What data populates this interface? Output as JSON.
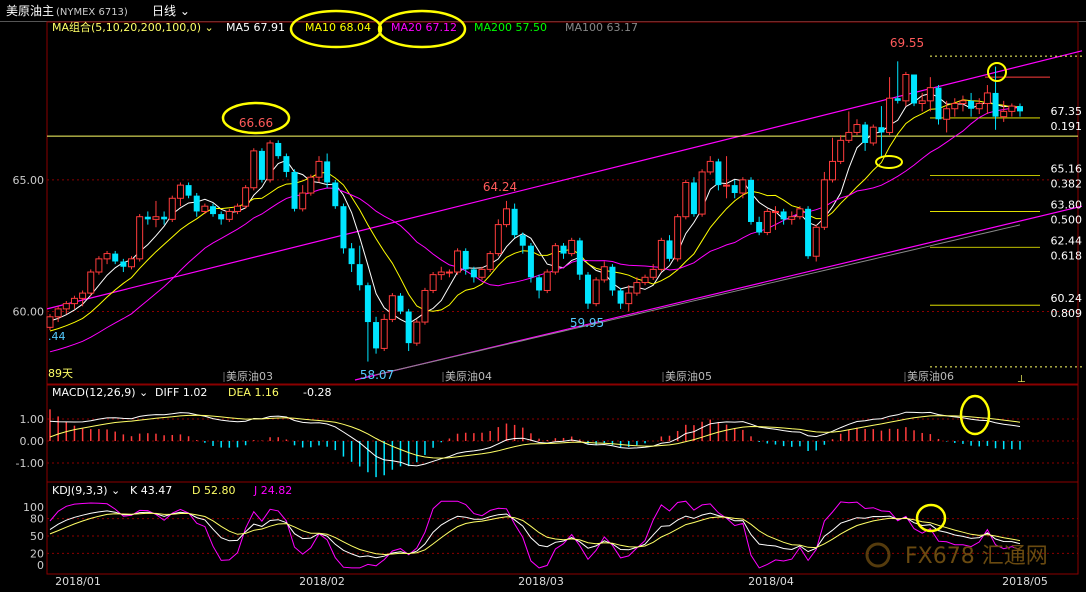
{
  "header": {
    "symbol": "美原油主",
    "code": "(NYMEX 6713)",
    "period": "日线"
  },
  "colors": {
    "background": "#000000",
    "up": "#ff3c3c",
    "down": "#00e5ff",
    "ma5": "#ffffff",
    "ma10": "#ffff00",
    "ma20": "#ff00ff",
    "ma200": "#00ff00",
    "ma100": "#888888",
    "channel": "#ff00ff",
    "fib": "#ffff00",
    "highlight": "#ffff00",
    "grid": "#8b0000"
  },
  "ma_panel": {
    "label": "MA组合(5,10,20,200,100,0)",
    "items": [
      {
        "label": "MA5",
        "value": "67.91"
      },
      {
        "label": "MA10",
        "value": "68.04"
      },
      {
        "label": "MA20",
        "value": "67.12"
      },
      {
        "label": "MA200",
        "value": "57.50"
      },
      {
        "label": "MA100",
        "value": "63.17"
      }
    ]
  },
  "macd_panel": {
    "label": "MACD(12,26,9)",
    "diff_label": "DIFF",
    "diff_value": "1.02",
    "dea_label": "DEA",
    "dea_value": "1.16",
    "macd_value": "-0.28",
    "ticks": [
      "1.00",
      "0.00",
      "-1.00"
    ]
  },
  "kdj_panel": {
    "label": "KDJ(9,3,3)",
    "k_label": "K",
    "k_value": "43.47",
    "d_label": "D",
    "d_value": "52.80",
    "j_label": "J",
    "j_value": "24.82",
    "ticks": [
      "100",
      "80",
      "50",
      "20",
      "0"
    ]
  },
  "annotations": {
    "high_1": "66.66",
    "low_1": "58.07",
    "peak_2": "64.24",
    "low_2": "59.95",
    "high_3": "69.55",
    "left_edge": ".44",
    "days_note": "89天"
  },
  "contracts": [
    "美原油03",
    "美原油04",
    "美原油05",
    "美原油06"
  ],
  "fib_levels": [
    {
      "price": "67.35",
      "ratio": "0.191"
    },
    {
      "price": "65.16",
      "ratio": "0.382"
    },
    {
      "price": "63.80",
      "ratio": "0.500"
    },
    {
      "price": "62.44",
      "ratio": "0.618"
    },
    {
      "price": "60.24",
      "ratio": "0.809"
    }
  ],
  "watermark": "FX678 汇通网",
  "chart_data": {
    "type": "candlestick",
    "x_axis_labels": [
      "2018/01",
      "2018/02",
      "2018/03",
      "2018/04",
      "2018/05"
    ],
    "y_ticks": [
      "65.00",
      "60.00"
    ],
    "ylim": [
      57.4,
      70.5
    ],
    "candles": [
      [
        59.4,
        59.8,
        59.3,
        59.9
      ],
      [
        59.8,
        60.1,
        59.6,
        60.2
      ],
      [
        60.1,
        60.3,
        59.9,
        60.4
      ],
      [
        60.3,
        60.5,
        60.1,
        60.6
      ],
      [
        60.5,
        60.7,
        60.2,
        60.8
      ],
      [
        60.7,
        61.5,
        60.6,
        61.6
      ],
      [
        61.5,
        62.0,
        61.4,
        62.1
      ],
      [
        62.0,
        62.2,
        61.8,
        62.3
      ],
      [
        62.2,
        61.9,
        61.8,
        62.3
      ],
      [
        61.9,
        61.7,
        61.5,
        62.0
      ],
      [
        61.7,
        62.0,
        61.6,
        62.1
      ],
      [
        62.0,
        63.6,
        61.9,
        63.7
      ],
      [
        63.6,
        63.5,
        63.3,
        63.8
      ],
      [
        63.5,
        63.6,
        63.2,
        64.2
      ],
      [
        63.6,
        63.5,
        63.3,
        63.8
      ],
      [
        63.5,
        64.3,
        63.4,
        64.4
      ],
      [
        64.3,
        64.8,
        64.0,
        64.9
      ],
      [
        64.8,
        64.4,
        64.3,
        64.9
      ],
      [
        64.4,
        63.8,
        63.6,
        64.5
      ],
      [
        63.8,
        64.0,
        63.7,
        64.1
      ],
      [
        64.0,
        63.7,
        63.6,
        64.1
      ],
      [
        63.7,
        63.5,
        63.3,
        63.8
      ],
      [
        63.5,
        63.8,
        63.4,
        63.9
      ],
      [
        63.8,
        64.0,
        63.7,
        64.1
      ],
      [
        64.0,
        64.7,
        63.9,
        64.8
      ],
      [
        64.7,
        66.1,
        64.6,
        66.2
      ],
      [
        66.1,
        65.0,
        64.9,
        66.2
      ],
      [
        65.0,
        66.4,
        64.9,
        66.5
      ],
      [
        66.4,
        65.9,
        65.8,
        66.5
      ],
      [
        65.9,
        65.3,
        65.1,
        66.0
      ],
      [
        65.3,
        63.9,
        63.8,
        65.4
      ],
      [
        63.9,
        64.5,
        63.8,
        64.8
      ],
      [
        64.5,
        65.1,
        64.4,
        65.2
      ],
      [
        65.1,
        65.7,
        64.9,
        65.9
      ],
      [
        65.7,
        64.9,
        64.7,
        66.0
      ],
      [
        64.9,
        64.0,
        63.9,
        65.0
      ],
      [
        64.0,
        62.4,
        62.2,
        64.1
      ],
      [
        62.4,
        61.8,
        61.5,
        62.6
      ],
      [
        61.8,
        61.0,
        60.8,
        62.5
      ],
      [
        61.0,
        59.6,
        58.1,
        61.1
      ],
      [
        59.6,
        58.6,
        58.4,
        59.8
      ],
      [
        58.6,
        59.7,
        58.5,
        59.9
      ],
      [
        59.7,
        60.6,
        59.6,
        60.7
      ],
      [
        60.6,
        60.0,
        59.9,
        60.7
      ],
      [
        60.0,
        58.8,
        58.5,
        60.1
      ],
      [
        58.8,
        59.6,
        58.7,
        59.7
      ],
      [
        59.6,
        60.8,
        59.5,
        60.9
      ],
      [
        60.8,
        61.4,
        60.7,
        61.5
      ],
      [
        61.4,
        61.5,
        61.2,
        61.7
      ],
      [
        61.5,
        61.5,
        61.3,
        61.6
      ],
      [
        61.5,
        62.3,
        61.4,
        62.4
      ],
      [
        62.3,
        61.6,
        61.4,
        62.4
      ],
      [
        61.6,
        61.3,
        61.1,
        61.7
      ],
      [
        61.3,
        61.6,
        61.2,
        61.7
      ],
      [
        61.6,
        62.2,
        61.5,
        62.3
      ],
      [
        62.2,
        63.3,
        62.1,
        63.5
      ],
      [
        63.3,
        63.9,
        63.2,
        64.2
      ],
      [
        63.9,
        62.9,
        62.8,
        64.1
      ],
      [
        62.9,
        62.5,
        62.2,
        63.0
      ],
      [
        62.5,
        61.3,
        61.1,
        62.6
      ],
      [
        61.3,
        60.8,
        60.5,
        61.4
      ],
      [
        60.8,
        61.5,
        60.7,
        61.6
      ],
      [
        61.5,
        62.5,
        61.4,
        62.6
      ],
      [
        62.5,
        62.2,
        62.0,
        62.6
      ],
      [
        62.2,
        62.7,
        62.1,
        62.8
      ],
      [
        62.7,
        61.4,
        61.2,
        62.8
      ],
      [
        61.4,
        60.3,
        60.1,
        61.5
      ],
      [
        60.3,
        61.2,
        60.2,
        61.3
      ],
      [
        61.2,
        61.7,
        61.1,
        61.9
      ],
      [
        61.7,
        60.8,
        60.6,
        61.8
      ],
      [
        60.8,
        60.3,
        60.1,
        60.9
      ],
      [
        60.3,
        60.7,
        60.0,
        61.0
      ],
      [
        60.7,
        61.1,
        60.6,
        61.3
      ],
      [
        61.1,
        61.3,
        61.0,
        61.4
      ],
      [
        61.3,
        61.6,
        61.2,
        61.8
      ],
      [
        61.6,
        62.7,
        61.5,
        62.8
      ],
      [
        62.7,
        62.0,
        61.9,
        62.9
      ],
      [
        62.0,
        63.6,
        61.9,
        63.7
      ],
      [
        63.6,
        64.9,
        63.5,
        65.0
      ],
      [
        64.9,
        63.7,
        63.6,
        65.1
      ],
      [
        63.7,
        65.3,
        63.6,
        65.4
      ],
      [
        65.3,
        65.7,
        65.2,
        65.9
      ],
      [
        65.7,
        64.8,
        64.6,
        65.8
      ],
      [
        64.8,
        64.8,
        64.3,
        65.9
      ],
      [
        64.8,
        64.5,
        64.3,
        65.0
      ],
      [
        64.5,
        65.0,
        64.3,
        65.1
      ],
      [
        65.0,
        63.4,
        63.3,
        65.1
      ],
      [
        63.4,
        63.0,
        62.9,
        63.6
      ],
      [
        63.0,
        63.8,
        62.9,
        63.9
      ],
      [
        63.8,
        63.8,
        63.1,
        64.0
      ],
      [
        63.8,
        63.5,
        63.3,
        63.9
      ],
      [
        63.5,
        63.6,
        63.3,
        63.8
      ],
      [
        63.6,
        63.9,
        63.5,
        64.0
      ],
      [
        63.9,
        62.1,
        62.0,
        64.0
      ],
      [
        62.1,
        63.2,
        61.9,
        63.3
      ],
      [
        63.2,
        65.0,
        63.1,
        65.3
      ],
      [
        65.0,
        65.7,
        64.9,
        66.6
      ],
      [
        65.7,
        66.5,
        65.6,
        66.7
      ],
      [
        66.5,
        66.8,
        66.4,
        67.6
      ],
      [
        66.8,
        67.1,
        66.7,
        67.3
      ],
      [
        67.1,
        66.4,
        66.1,
        67.2
      ],
      [
        66.4,
        67.0,
        66.3,
        67.1
      ],
      [
        67.0,
        66.8,
        65.9,
        67.8
      ],
      [
        66.8,
        68.1,
        66.7,
        68.9
      ],
      [
        68.1,
        68.0,
        67.9,
        69.5
      ],
      [
        68.0,
        69.0,
        67.8,
        69.1
      ],
      [
        69.0,
        67.9,
        67.8,
        69.0
      ],
      [
        67.9,
        68.0,
        67.6,
        68.3
      ],
      [
        68.0,
        68.5,
        67.6,
        68.9
      ],
      [
        68.5,
        67.3,
        67.1,
        68.6
      ],
      [
        67.3,
        67.7,
        66.8,
        68.0
      ],
      [
        67.7,
        67.9,
        67.4,
        68.1
      ],
      [
        67.9,
        68.0,
        67.6,
        68.2
      ],
      [
        68.0,
        67.7,
        67.4,
        68.3
      ],
      [
        67.7,
        67.9,
        67.5,
        68.1
      ],
      [
        67.9,
        68.3,
        67.5,
        68.6
      ],
      [
        68.3,
        67.4,
        66.9,
        69.3
      ],
      [
        67.4,
        67.6,
        67.2,
        68.0
      ],
      [
        67.6,
        67.8,
        67.4,
        67.9
      ],
      [
        67.8,
        67.6,
        67.4,
        67.9
      ]
    ]
  }
}
